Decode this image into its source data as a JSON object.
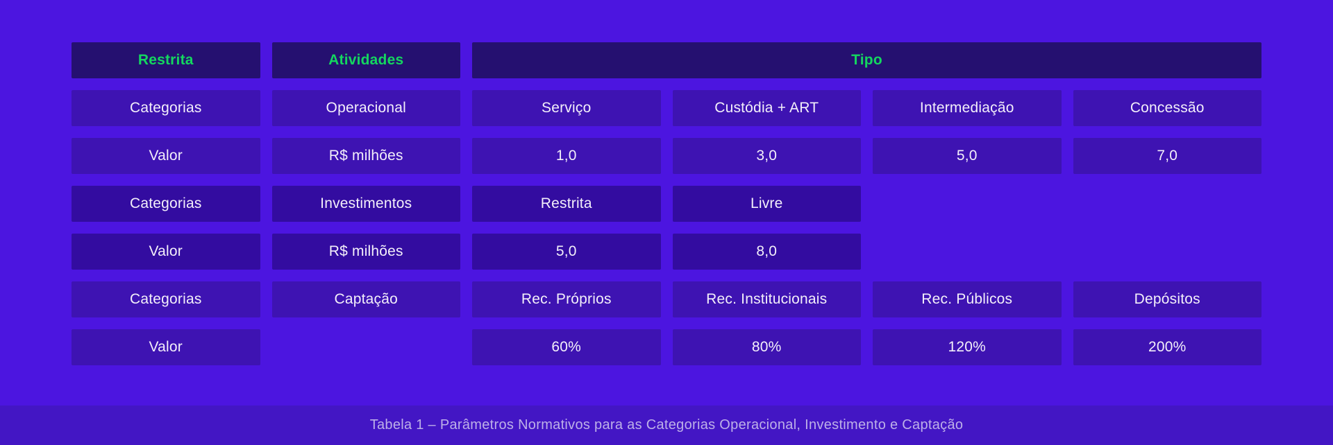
{
  "page": {
    "background_color": "#4C15E0",
    "accent_green": "#14D65F",
    "cell_light_color": "#3E13B2",
    "cell_dark_color": "#330CA0",
    "header_cell_color": "#251070",
    "caption_band_color": "#4316C4"
  },
  "table": {
    "headers": [
      {
        "label": "Restrita",
        "span": 1
      },
      {
        "label": "Atividades",
        "span": 1
      },
      {
        "label": "Tipo",
        "span": 4
      }
    ],
    "rows": [
      {
        "shade": "light",
        "cells": [
          "Categorias",
          "Operacional",
          "Serviço",
          "Custódia + ART",
          "Intermediação",
          "Concessão"
        ]
      },
      {
        "shade": "light",
        "cells": [
          "Valor",
          "R$ milhões",
          "1,0",
          "3,0",
          "5,0",
          "7,0"
        ]
      },
      {
        "shade": "dark",
        "cells": [
          "Categorias",
          "Investimentos",
          "Restrita",
          "Livre",
          null,
          null
        ]
      },
      {
        "shade": "dark",
        "cells": [
          "Valor",
          "R$ milhões",
          "5,0",
          "8,0",
          null,
          null
        ]
      },
      {
        "shade": "light",
        "cells": [
          "Categorias",
          "Captação",
          "Rec. Próprios",
          "Rec. Institucionais",
          "Rec. Públicos",
          "Depósitos"
        ]
      },
      {
        "shade": "light",
        "cells": [
          "Valor",
          null,
          "60%",
          "80%",
          "120%",
          "200%"
        ]
      }
    ]
  },
  "caption": {
    "text": "Tabela 1 – Parâmetros Normativos para as Categorias Operacional, Investimento e Captação"
  },
  "chart_data": {
    "type": "table",
    "title": "Tabela 1 – Parâmetros Normativos para as Categorias Operacional, Investimento e Captação",
    "header_columns": [
      "Restrita",
      "Atividades",
      "Tipo"
    ],
    "groups": [
      {
        "atividade": "Operacional",
        "unidade": "R$ milhões",
        "tipos": [
          "Serviço",
          "Custódia + ART",
          "Intermediação",
          "Concessão"
        ],
        "valores": [
          "1,0",
          "3,0",
          "5,0",
          "7,0"
        ]
      },
      {
        "atividade": "Investimentos",
        "unidade": "R$ milhões",
        "tipos": [
          "Restrita",
          "Livre"
        ],
        "valores": [
          "5,0",
          "8,0"
        ]
      },
      {
        "atividade": "Captação",
        "unidade": "",
        "tipos": [
          "Rec. Próprios",
          "Rec. Institucionais",
          "Rec. Públicos",
          "Depósitos"
        ],
        "valores": [
          "60%",
          "80%",
          "120%",
          "200%"
        ]
      }
    ],
    "layout": {
      "grid": false,
      "legend": "none",
      "note": "matrix-style table; Tipo header spans 4 columns; rows alternate light/dark in pairs"
    }
  }
}
